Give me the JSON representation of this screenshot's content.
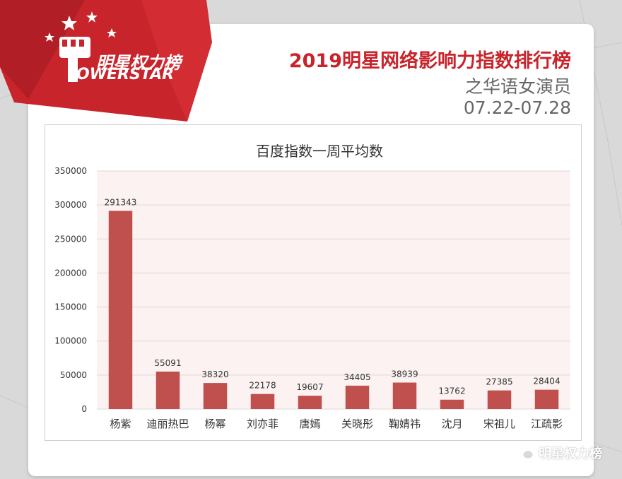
{
  "brand": {
    "logo_cn": "明星权力榜",
    "logo_en": "OWERSTAR",
    "accent": "#c8242b"
  },
  "header": {
    "title": "2019明星网络影响力指数排行榜",
    "subtitle": "之华语女演员",
    "date_range": "07.22-07.28"
  },
  "footer": {
    "account": "明星权力榜",
    "icon": "wechat-icon"
  },
  "chart_data": {
    "type": "bar",
    "title": "百度指数一周平均数",
    "categories": [
      "杨紫",
      "迪丽热巴",
      "杨幂",
      "刘亦菲",
      "唐嫣",
      "关晓彤",
      "鞠婧祎",
      "沈月",
      "宋祖儿",
      "江疏影"
    ],
    "values": [
      291343,
      55091,
      38320,
      22178,
      19607,
      34405,
      38939,
      13762,
      27385,
      28404
    ],
    "ylim": [
      0,
      350000
    ],
    "yticks": [
      "0",
      "50000",
      "100000",
      "150000",
      "200000",
      "250000",
      "300000",
      "350000"
    ],
    "xlabel": "",
    "ylabel": "",
    "grid": true,
    "bar_color": "#c0504d",
    "plot_bg": "#fdf2f2"
  }
}
